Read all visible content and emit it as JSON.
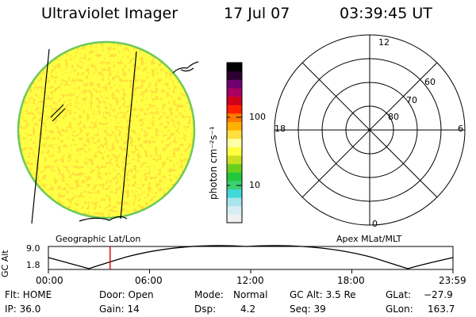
{
  "header": {
    "title": "Ultraviolet Imager",
    "date": "17 Jul 07",
    "time": "03:39:45 UT"
  },
  "colorbar": {
    "unit_label": "photon cm⁻²s⁻¹",
    "tick_100": "100",
    "tick_10": "10",
    "colors": [
      "#f0f0f0",
      "#d8eef2",
      "#a8e6ec",
      "#40d8d8",
      "#3cd070",
      "#22c83c",
      "#6ad020",
      "#c8e020",
      "#ffff40",
      "#ffffa8",
      "#ffe040",
      "#ffb000",
      "#ff7800",
      "#ff2000",
      "#d0001c",
      "#a80060",
      "#700070",
      "#2c0030",
      "#000000"
    ]
  },
  "polar_grid": {
    "clock_labels": {
      "top": "12",
      "left": "18",
      "right": "6",
      "bottom": "0"
    },
    "lat_labels": [
      "60",
      "70",
      "80"
    ]
  },
  "altitude_panel": {
    "left_caption": "Geographic Lat/Lon",
    "right_caption": "Apex MLat/MLT",
    "ylabel": "GC Alt",
    "ytick_top": "9.0",
    "ytick_bottom": "1.8",
    "time_ticks": [
      "00:00",
      "06:00",
      "12:00",
      "18:00",
      "23:59"
    ],
    "current_time_marker_color": "#e00000",
    "current_time_hours": 3.66
  },
  "footer": {
    "row1": {
      "flt": "Flt: HOME",
      "door": "Door: Open",
      "mode_label": "Mode:",
      "mode_value": "Normal",
      "gcalt": "GC Alt: 3.5 Re",
      "glat_label": "GLat:",
      "glat_value": "−27.9"
    },
    "row2": {
      "ip": "IP: 36.0",
      "gain": "Gain: 14",
      "dsp_label": "Dsp:",
      "dsp_value": "4.2",
      "seq": "Seq: 39",
      "glon_label": "GLon:",
      "glon_value": "163.7"
    }
  }
}
